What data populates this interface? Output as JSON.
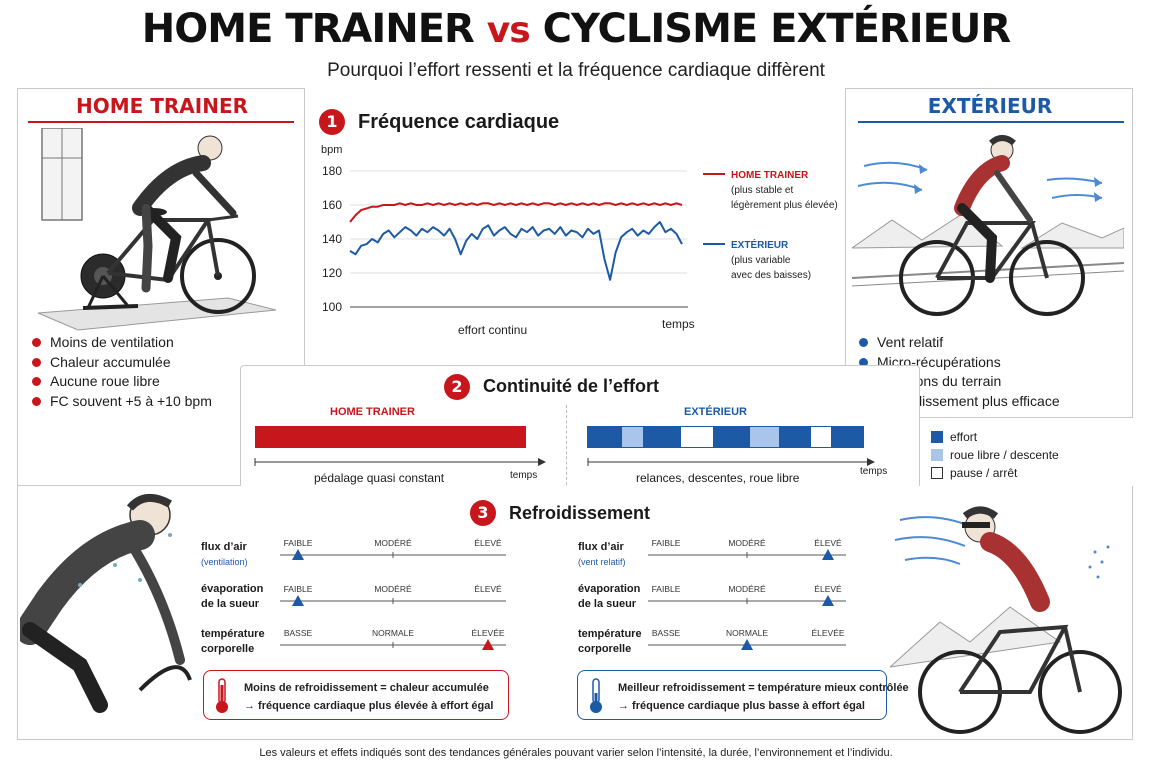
{
  "header": {
    "title_left": "HOME TRAINER",
    "title_vs": "vs",
    "title_right": "CYCLISME EXTÉRIEUR",
    "subtitle": "Pourquoi l’effort ressenti et la fréquence cardiaque diffèrent"
  },
  "left_panel": {
    "heading": "HOME TRAINER",
    "bullets": [
      "Moins de ventilation",
      "Chaleur accumulée",
      "Aucune roue libre",
      "FC souvent +5 à +10 bpm"
    ]
  },
  "right_panel": {
    "heading": "EXTÉRIEUR",
    "bullets": [
      "Vent relatif",
      "Micro-récupérations",
      "Variations du terrain",
      "Refroidissement plus efficace"
    ]
  },
  "section1": {
    "number": "1",
    "title": "Fréquence cardiaque",
    "legend": [
      {
        "name": "HOME TRAINER",
        "note1": "(plus stable et",
        "note2": "légèrement plus élevée)"
      },
      {
        "name": "EXTÉRIEUR",
        "note1": "(plus variable",
        "note2": "avec des baisses)"
      }
    ]
  },
  "section2": {
    "number": "2",
    "title": "Continuité de l’effort",
    "home_label": "HOME TRAINER",
    "home_caption": "pédalage quasi constant",
    "out_label": "EXTÉRIEUR",
    "out_caption": "relances, descentes, roue libre",
    "axis_label": "temps",
    "legend": [
      "effort",
      "roue libre / descente",
      "pause / arrêt"
    ],
    "segments": [
      "effort",
      "roue libre / descente",
      "effort",
      "pause / arrêt",
      "effort",
      "roue libre / descente",
      "effort",
      "pause / arrêt",
      "effort"
    ]
  },
  "section3": {
    "number": "3",
    "title": "Refroidissement",
    "rows": [
      {
        "label": "flux d’air",
        "sub_left": "(ventilation)",
        "sub_right": "(vent relatif)",
        "scale": [
          "FAIBLE",
          "MODÉRÉ",
          "ÉLEVÉ"
        ],
        "home_level": 0,
        "out_level": 2
      },
      {
        "label1": "évaporation",
        "label2": "de la sueur",
        "scale": [
          "FAIBLE",
          "MODÉRÉ",
          "ÉLEVÉ"
        ],
        "home_level": 0,
        "out_level": 2
      },
      {
        "label1": "température",
        "label2": "corporelle",
        "scale": [
          "BASSE",
          "NORMALE",
          "ÉLEVÉE"
        ],
        "home_level": 2,
        "out_level": 1
      }
    ],
    "callout_home_1": "Moins de refroidissement = chaleur accumulée",
    "callout_home_2": "→ fréquence cardiaque plus élevée à effort égal",
    "callout_out_1": "Meilleur refroidissement = température mieux contrôlée",
    "callout_out_2": "→ fréquence cardiaque plus basse à effort égal"
  },
  "footer_note": "Les valeurs et effets indiqués sont des tendances générales pouvant varier selon l’intensité, la durée, l’environnement et l’individu.",
  "colors": {
    "red": "#c8161d",
    "blue": "#1d5aa6",
    "light_blue": "#a9c6ea"
  },
  "chart_data": {
    "type": "line",
    "ylabel": "bpm",
    "xlabel": "temps",
    "x_caption": "effort continu",
    "ylim": [
      100,
      180
    ],
    "yticks": [
      100,
      120,
      140,
      160,
      180
    ],
    "x": [
      0,
      1,
      2,
      3,
      4,
      5,
      6,
      7,
      8,
      9,
      10,
      11,
      12,
      13,
      14,
      15,
      16,
      17,
      18,
      19,
      20,
      21,
      22,
      23,
      24,
      25,
      26,
      27,
      28,
      29,
      30,
      31,
      32,
      33,
      34,
      35,
      36,
      37,
      38,
      39,
      40,
      41,
      42,
      43,
      44,
      45,
      46,
      47,
      48,
      49,
      50,
      51,
      52,
      53,
      54,
      55,
      56,
      57,
      58,
      59,
      60
    ],
    "series": [
      {
        "name": "HOME TRAINER",
        "color": "#c8161d",
        "values": [
          150,
          154,
          157,
          158,
          159,
          159,
          160,
          160,
          160,
          161,
          160,
          161,
          160,
          160,
          161,
          160,
          161,
          160,
          161,
          160,
          161,
          160,
          161,
          160,
          161,
          161,
          160,
          161,
          160,
          161,
          160,
          161,
          160,
          161,
          160,
          161,
          161,
          160,
          161,
          160,
          161,
          160,
          161,
          160,
          161,
          160,
          161,
          161,
          160,
          161,
          160,
          161,
          160,
          161,
          160,
          161,
          160,
          161,
          160,
          161,
          160
        ]
      },
      {
        "name": "EXTÉRIEUR",
        "color": "#1d5aa6",
        "values": [
          133,
          131,
          136,
          137,
          140,
          138,
          143,
          145,
          141,
          144,
          147,
          145,
          142,
          146,
          144,
          147,
          145,
          142,
          146,
          140,
          131,
          139,
          143,
          140,
          146,
          148,
          142,
          145,
          147,
          143,
          141,
          146,
          144,
          147,
          142,
          145,
          146,
          143,
          147,
          142,
          145,
          144,
          141,
          146,
          143,
          145,
          128,
          116,
          132,
          141,
          144,
          146,
          142,
          145,
          143,
          147,
          150,
          144,
          146,
          143,
          137
        ]
      }
    ]
  }
}
